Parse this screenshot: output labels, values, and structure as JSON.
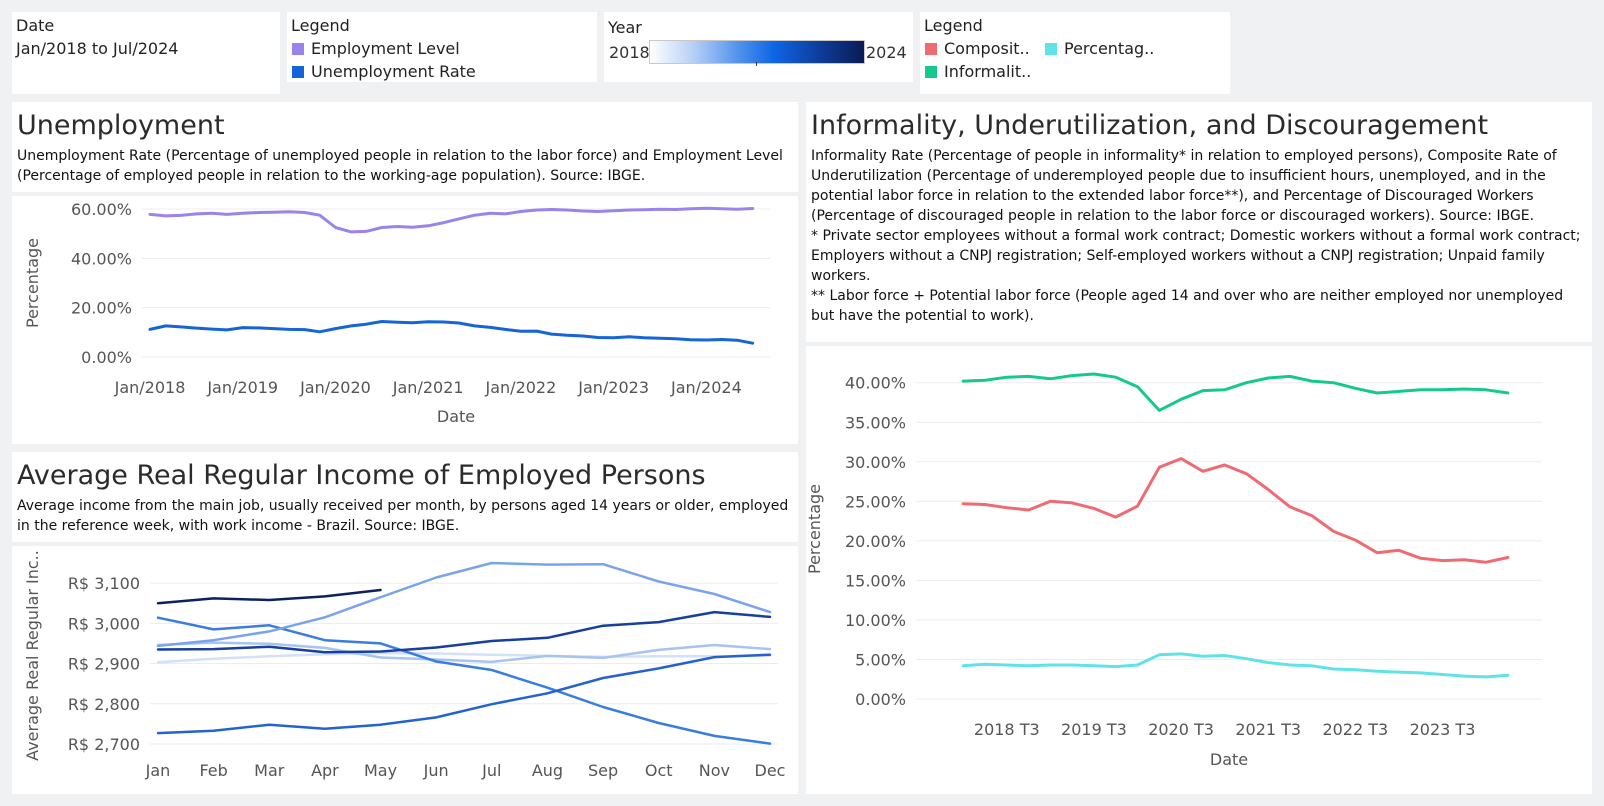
{
  "filters": {
    "date": {
      "label": "Date",
      "value": "Jan/2018 to Jul/2024"
    },
    "legend1": {
      "label": "Legend",
      "items": [
        {
          "name": "Employment Level",
          "color": "#9a84ec"
        },
        {
          "name": "Unemployment Rate",
          "color": "#1565d8"
        }
      ]
    },
    "year": {
      "label": "Year",
      "min": "2018",
      "max": "2024"
    },
    "legend2": {
      "label": "Legend",
      "items": [
        {
          "name": "Composit..",
          "color": "#ef6b73"
        },
        {
          "name": "Percentag..",
          "color": "#5fe3e8"
        },
        {
          "name": "Informalit..",
          "color": "#13c98e"
        }
      ]
    }
  },
  "unemployment": {
    "title": "Unemployment",
    "description": "Unemployment Rate (Percentage of unemployed people in relation to the labor force) and Employment Level (Percentage of employed people in relation to the working-age population). Source: IBGE."
  },
  "income": {
    "title": "Average Real Regular Income of Employed Persons",
    "description": "Average income from the main job, usually received per month, by persons aged 14 years or older, employed in the reference week, with work income - Brazil. Source: IBGE."
  },
  "informality": {
    "title": "Informality, Underutilization, and Discouragement",
    "description": [
      "Informality Rate (Percentage of people in informality* in relation to employed persons), Composite Rate of Underutilization (Percentage of underemployed people due to insufficient hours, unemployed, and in the potential labor force in relation to the extended labor force**), and Percentage of Discouraged Workers (Percentage of discouraged people in relation to the labor force or discouraged workers). Source: IBGE.",
      "* Private sector employees without a formal work contract; Domestic workers without a formal work contract; Employers without a CNPJ registration; Self-employed workers without a CNPJ registration; Unpaid family workers.",
      "** Labor force + Potential labor force (People aged 14 and over who are neither employed nor unemployed but have the potential to work)."
    ]
  },
  "chart_data": [
    {
      "id": "unemployment",
      "type": "line",
      "xlabel": "Date",
      "ylabel": "Percentage",
      "ylim": [
        0,
        60
      ],
      "yticks": [
        0,
        20,
        40,
        60
      ],
      "ytick_labels": [
        "0.00%",
        "20.00%",
        "40.00%",
        "60.00%"
      ],
      "xlim": [
        2018.0,
        2024.6
      ],
      "xticks": [
        2018,
        2019,
        2020,
        2021,
        2022,
        2023,
        2024
      ],
      "xtick_labels": [
        "Jan/2018",
        "Jan/2019",
        "Jan/2020",
        "Jan/2021",
        "Jan/2022",
        "Jan/2023",
        "Jan/2024"
      ],
      "x": [
        2018.0,
        2018.17,
        2018.33,
        2018.5,
        2018.67,
        2018.83,
        2019.0,
        2019.17,
        2019.33,
        2019.5,
        2019.67,
        2019.83,
        2020.0,
        2020.17,
        2020.33,
        2020.5,
        2020.67,
        2020.83,
        2021.0,
        2021.17,
        2021.33,
        2021.5,
        2021.67,
        2021.83,
        2022.0,
        2022.17,
        2022.33,
        2022.5,
        2022.67,
        2022.83,
        2023.0,
        2023.17,
        2023.33,
        2023.5,
        2023.67,
        2023.83,
        2024.0,
        2024.17,
        2024.33,
        2024.5
      ],
      "series": [
        {
          "name": "Employment Level",
          "color": "#9a84ec",
          "values": [
            57.8,
            57.2,
            57.4,
            58.0,
            58.3,
            57.8,
            58.3,
            58.6,
            58.7,
            58.9,
            58.6,
            57.5,
            52.5,
            50.7,
            50.9,
            52.5,
            52.9,
            52.6,
            53.2,
            54.5,
            56.0,
            57.5,
            58.3,
            58.0,
            59.0,
            59.6,
            59.8,
            59.6,
            59.2,
            59.0,
            59.3,
            59.6,
            59.7,
            59.9,
            59.8,
            60.1,
            60.3,
            60.1,
            59.9,
            60.2
          ]
        },
        {
          "name": "Unemployment Rate",
          "color": "#1565d8",
          "values": [
            11.2,
            12.6,
            12.2,
            11.7,
            11.3,
            11.0,
            11.9,
            11.8,
            11.5,
            11.2,
            11.1,
            10.2,
            11.5,
            12.6,
            13.3,
            14.4,
            14.1,
            13.9,
            14.3,
            14.2,
            13.8,
            12.6,
            12.0,
            11.2,
            10.4,
            10.5,
            9.3,
            8.8,
            8.5,
            7.9,
            7.8,
            8.2,
            7.8,
            7.6,
            7.4,
            7.0,
            6.9,
            7.1,
            6.8,
            5.6
          ]
        }
      ]
    },
    {
      "id": "income",
      "type": "line",
      "xlabel": "",
      "ylabel": "Average Real Regular Inc..",
      "ylim": [
        2680,
        3160
      ],
      "yticks": [
        2700,
        2800,
        2900,
        3000,
        3100
      ],
      "ytick_labels": [
        "R$ 2,700",
        "R$ 2,800",
        "R$ 2,900",
        "R$ 3,000",
        "R$ 3,100"
      ],
      "categories": [
        "Jan",
        "Feb",
        "Mar",
        "Apr",
        "May",
        "Jun",
        "Jul",
        "Aug",
        "Sep",
        "Oct",
        "Nov",
        "Dec"
      ],
      "series": [
        {
          "name": "2018",
          "color": "#d2e0f8",
          "values": [
            2903,
            2912,
            2918,
            2923,
            2926,
            2925,
            2922,
            2919,
            2917,
            2918,
            2918,
            2920
          ]
        },
        {
          "name": "2019",
          "color": "#a7c3f0",
          "values": [
            2946,
            2952,
            2949,
            2939,
            2915,
            2910,
            2904,
            2919,
            2914,
            2934,
            2946,
            2936
          ]
        },
        {
          "name": "2020",
          "color": "#3a7de0",
          "values": [
            3014,
            2985,
            2995,
            2958,
            2950,
            2905,
            2884,
            2840,
            2792,
            2752,
            2720,
            2701
          ]
        },
        {
          "name": "2021",
          "color": "#2362cf",
          "values": [
            2727,
            2733,
            2748,
            2738,
            2748,
            2766,
            2799,
            2826,
            2864,
            2888,
            2916,
            2922
          ]
        },
        {
          "name": "2022",
          "color": "#7aa4ea",
          "values": [
            2944,
            2958,
            2980,
            3015,
            3065,
            3114,
            3150,
            3146,
            3147,
            3104,
            3073,
            3028
          ]
        },
        {
          "name": "2023",
          "color": "#163f9e",
          "values": [
            2935,
            2936,
            2942,
            2928,
            2930,
            2940,
            2956,
            2964,
            2994,
            3003,
            3028,
            3016
          ]
        },
        {
          "name": "2024",
          "color": "#0b2260",
          "values": [
            3050,
            3062,
            3058,
            3067,
            3083,
            null,
            null,
            null,
            null,
            null,
            null,
            null
          ]
        }
      ]
    },
    {
      "id": "informality",
      "type": "line",
      "xlabel": "Date",
      "ylabel": "Percentage",
      "ylim": [
        0,
        43
      ],
      "yticks": [
        0,
        5,
        10,
        15,
        20,
        25,
        30,
        35,
        40
      ],
      "ytick_labels": [
        "0.00%",
        "5.00%",
        "10.00%",
        "15.00%",
        "20.00%",
        "25.00%",
        "30.00%",
        "35.00%",
        "40.00%"
      ],
      "x": [
        2018.0,
        2018.25,
        2018.5,
        2018.75,
        2019.0,
        2019.25,
        2019.5,
        2019.75,
        2020.0,
        2020.25,
        2020.5,
        2020.75,
        2021.0,
        2021.25,
        2021.5,
        2021.75,
        2022.0,
        2022.25,
        2022.5,
        2022.75,
        2023.0,
        2023.25,
        2023.5,
        2023.75,
        2024.0,
        2024.25
      ],
      "xlim": [
        2017.55,
        2024.55
      ],
      "xticks": [
        2018.5,
        2019.5,
        2020.5,
        2021.5,
        2022.5,
        2023.5
      ],
      "xtick_labels": [
        "2018 T3",
        "2019 T3",
        "2020 T3",
        "2021 T3",
        "2022 T3",
        "2023 T3"
      ],
      "series": [
        {
          "name": "Informality Rate",
          "color": "#13c98e",
          "values": [
            40.2,
            40.3,
            40.7,
            40.8,
            40.5,
            40.9,
            41.1,
            40.7,
            39.5,
            36.5,
            37.9,
            39.0,
            39.1,
            40.0,
            40.6,
            40.8,
            40.2,
            40.0,
            39.3,
            38.7,
            38.9,
            39.1,
            39.1,
            39.2,
            39.1,
            38.7
          ]
        },
        {
          "name": "Composite Rate of Underutilization",
          "color": "#ef6b73",
          "values": [
            24.7,
            24.6,
            24.2,
            23.9,
            25.0,
            24.8,
            24.1,
            23.0,
            24.4,
            29.3,
            30.4,
            28.8,
            29.6,
            28.5,
            26.5,
            24.3,
            23.2,
            21.2,
            20.1,
            18.5,
            18.8,
            17.8,
            17.5,
            17.6,
            17.3,
            17.9
          ]
        },
        {
          "name": "Percentage of Discouraged Workers",
          "color": "#5fe3e8",
          "values": [
            4.2,
            4.4,
            4.3,
            4.2,
            4.3,
            4.3,
            4.2,
            4.1,
            4.3,
            5.6,
            5.7,
            5.4,
            5.5,
            5.1,
            4.6,
            4.3,
            4.2,
            3.8,
            3.7,
            3.5,
            3.4,
            3.3,
            3.1,
            2.9,
            2.8,
            3.0
          ]
        }
      ]
    }
  ]
}
